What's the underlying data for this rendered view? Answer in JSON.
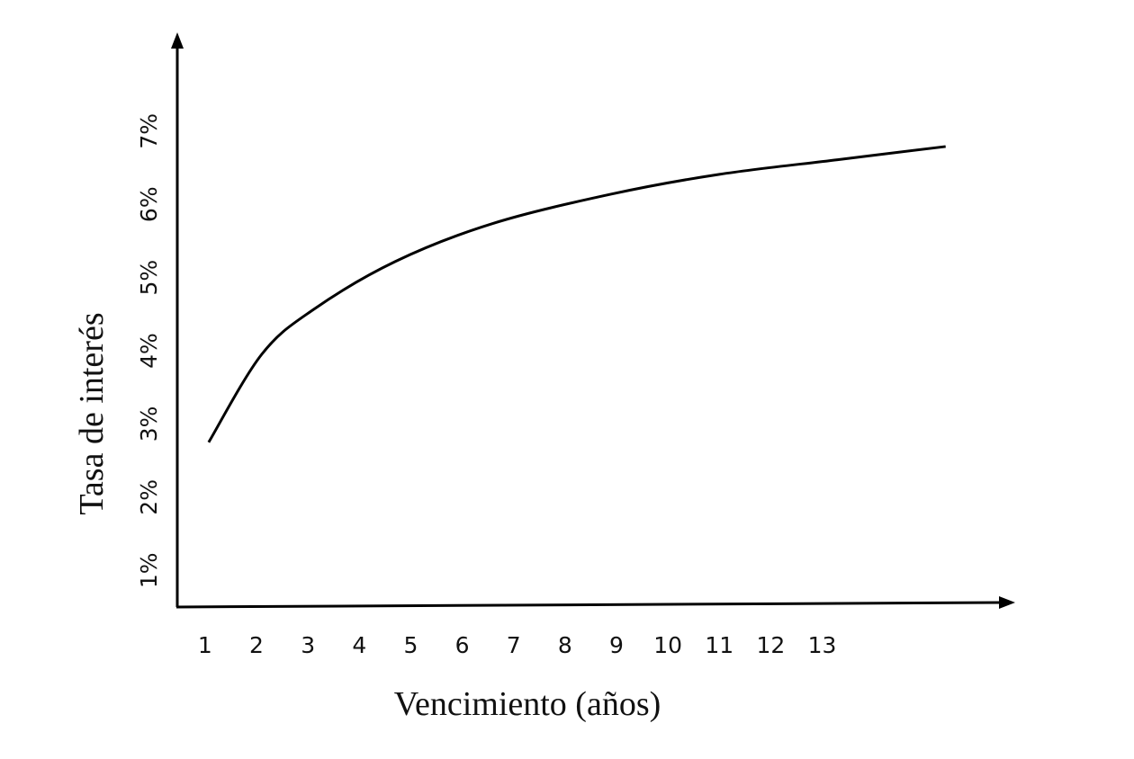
{
  "chart_data": {
    "type": "line",
    "x_label": "Vencimiento (años)",
    "y_label": "Tasa de interés",
    "x": [
      1.07,
      2.1,
      3.1,
      4.7,
      6.6,
      8.9,
      11.0,
      13.3,
      15.4
    ],
    "series": [
      {
        "color": "#000000",
        "values": [
          2.75,
          3.95,
          4.56,
          5.22,
          5.74,
          6.14,
          6.41,
          6.61,
          6.79
        ]
      }
    ],
    "xlim": [
      0.46,
      16.7
    ],
    "ylim": [
      0.5,
      8.3
    ],
    "xticks": [
      1,
      2,
      3,
      4,
      5,
      6,
      7,
      8,
      9,
      10,
      11,
      12,
      13
    ],
    "yticks": [
      {
        "value": 1,
        "label": "1%"
      },
      {
        "value": 2,
        "label": "2%"
      },
      {
        "value": 3,
        "label": "3%"
      },
      {
        "value": 4,
        "label": "4%"
      },
      {
        "value": 5,
        "label": "5%"
      },
      {
        "value": 6,
        "label": "6%"
      },
      {
        "value": 7,
        "label": "7%"
      }
    ],
    "grid": false
  }
}
